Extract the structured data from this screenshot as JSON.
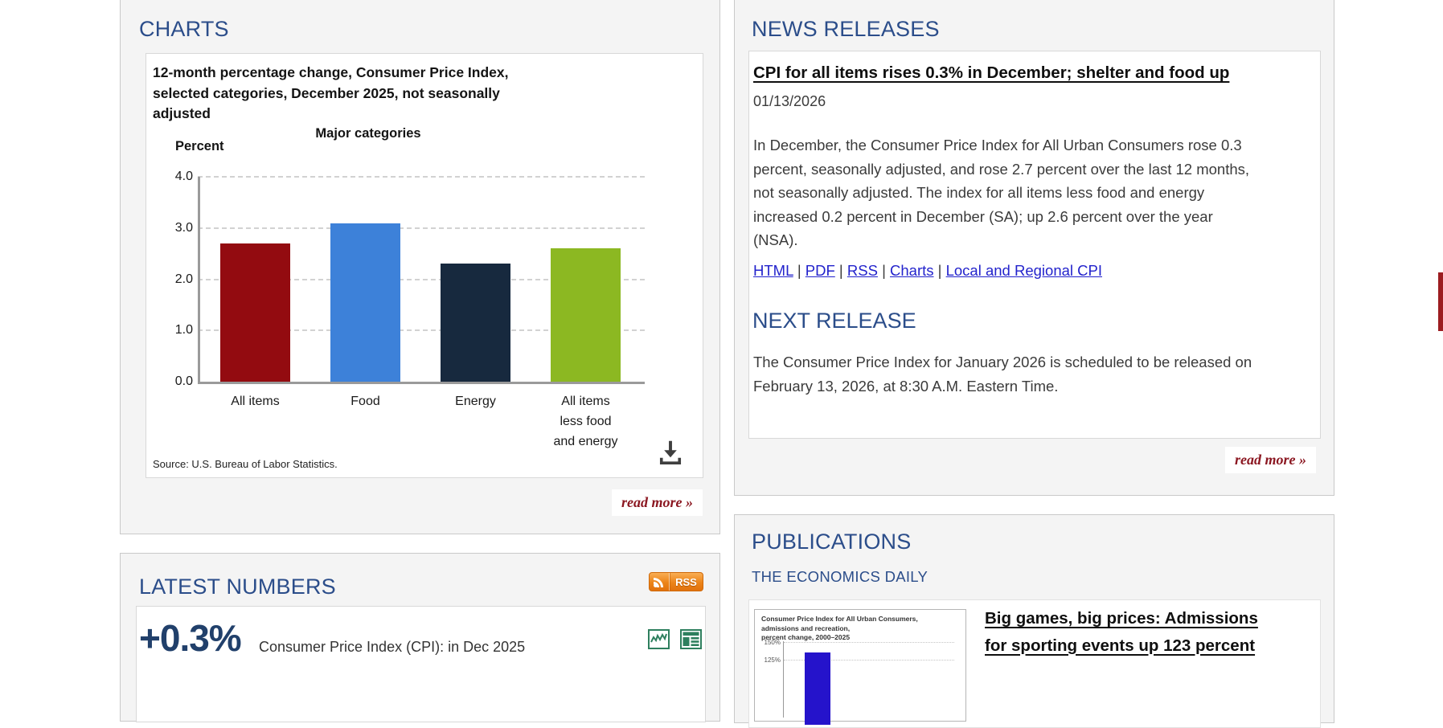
{
  "colors": {
    "heading_blue": "#2b4d8a",
    "link_blue": "#2323cc",
    "body_text": "#3b3b3b",
    "read_more_red": "#8b1721",
    "rss_orange": "#ec8419",
    "icon_green": "#2e7f5e",
    "big_number_navy": "#21406b",
    "edge_tab_red": "#9c1c20"
  },
  "icons": [
    "download-icon",
    "rss-icon",
    "line-chart-icon",
    "table-icon",
    "double-angle-right"
  ],
  "charts_panel": {
    "heading": "CHARTS",
    "source": "Source: U.S. Bureau of Labor Statistics.",
    "read_more": "read more »"
  },
  "chart_data": {
    "type": "bar",
    "title": "12-month percentage change, Consumer Price Index, selected categories, December 2025, not seasonally adjusted",
    "title_lines": [
      "12-month percentage change, Consumer Price Index,",
      "selected categories, December 2025, not seasonally",
      "adjusted"
    ],
    "subtitle": "Major categories",
    "xlabel": "",
    "ylabel": "Percent",
    "categories": [
      "All items",
      "Food",
      "Energy",
      "All items less food and energy"
    ],
    "values": [
      2.7,
      3.1,
      2.3,
      2.6
    ],
    "bar_colors": [
      "#930b10",
      "#3d81d9",
      "#17293e",
      "#8cb822"
    ],
    "ylim": [
      0.0,
      4.0
    ],
    "yticks": [
      0.0,
      1.0,
      2.0,
      3.0,
      4.0
    ],
    "grid": "horizontal-dashed",
    "legend": "none"
  },
  "news_panel": {
    "heading": "NEWS RELEASES",
    "headline": "CPI for all items rises 0.3% in December; shelter and food up",
    "date": "01/13/2026",
    "body_lines": [
      "In December, the Consumer Price Index for All Urban Consumers rose 0.3",
      "percent, seasonally adjusted, and rose 2.7 percent over the last 12 months,",
      "not seasonally adjusted. The index for all items less food and energy",
      "increased 0.2 percent in December (SA); up 2.6 percent over the year",
      "(NSA)."
    ],
    "links": [
      "HTML",
      "PDF",
      "RSS",
      "Charts",
      "Local and Regional CPI"
    ],
    "separator": "|",
    "next_release_heading": "NEXT RELEASE",
    "next_release_lines": [
      "The Consumer Price Index for January 2026 is scheduled to be released on",
      "February 13, 2026, at 8:30 A.M. Eastern Time."
    ],
    "read_more": "read more »"
  },
  "latest_numbers_panel": {
    "heading": "LATEST NUMBERS",
    "rss_label": "RSS",
    "value": "+0.3%",
    "value_label": "Consumer Price Index (CPI): in Dec 2025"
  },
  "publications_panel": {
    "heading": "PUBLICATIONS",
    "subheading": "THE ECONOMICS DAILY",
    "thumbnail": {
      "title_lines": [
        "Consumer Price Index for All Urban Consumers, admissions and recreation,",
        "percent change, 2000–2025"
      ],
      "yticks": [
        "150%",
        "125%"
      ]
    },
    "headline_lines": [
      "Big games, big prices: Admissions",
      "for sporting events up 123 percent"
    ]
  }
}
